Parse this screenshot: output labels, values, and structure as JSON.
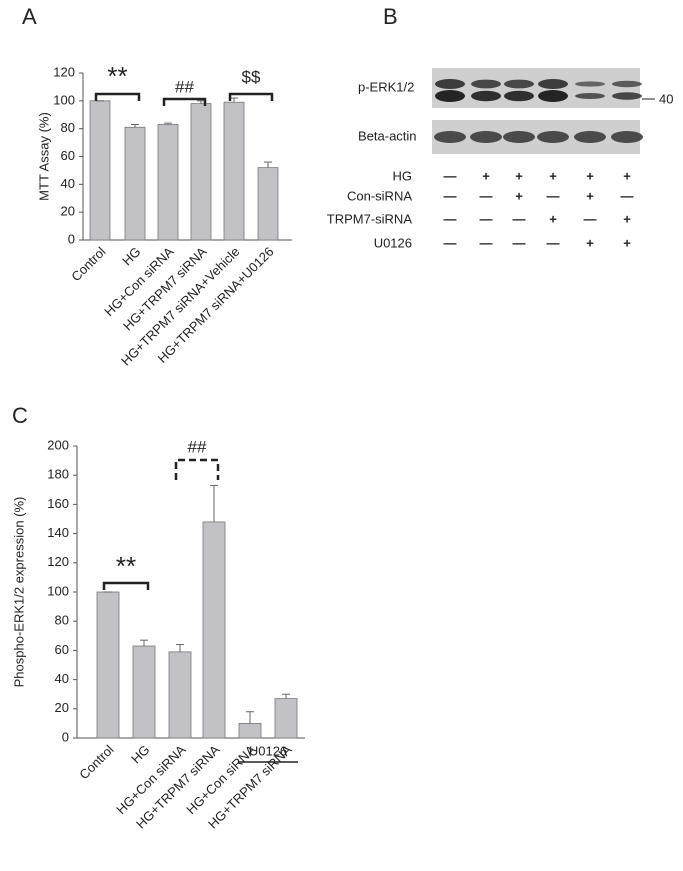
{
  "chart_data": [
    {
      "panel": "A",
      "type": "bar",
      "y_label": "MTT Assay (%)",
      "categories": [
        "Control",
        "HG",
        "HG+Con siRNA",
        "HG+TRPM7 siRNA",
        "HG+TRPM7 siRNA+Vehicle",
        "HG+TRPM7 siRNA+U0126"
      ],
      "values": [
        100,
        81,
        83,
        98,
        99,
        52
      ],
      "errors": [
        0,
        2,
        1,
        2,
        3,
        4
      ],
      "color": "#c2c2c6",
      "ylim": [
        0,
        120
      ],
      "yticks": [
        0,
        20,
        40,
        60,
        80,
        100,
        120
      ],
      "annotations": [
        "**",
        "##",
        "$$"
      ]
    },
    {
      "panel": "C",
      "type": "bar",
      "y_label": "Phospho-ERK1/2 expression (%)",
      "categories": [
        "Control",
        "HG",
        "HG+Con siRNA",
        "HG+TRPM7 siRNA",
        "HG+Con siRNA",
        "HG+TRPM7 siRNA"
      ],
      "values": [
        100,
        63,
        59,
        148,
        10,
        27
      ],
      "errors": [
        0,
        4,
        5,
        25,
        8,
        3
      ],
      "color": "#c2c2c6",
      "ylim": [
        0,
        200
      ],
      "yticks": [
        0,
        20,
        40,
        60,
        80,
        100,
        120,
        140,
        160,
        180,
        200
      ],
      "annotations": [
        "**",
        "##"
      ],
      "group_label": "U0126"
    }
  ],
  "blot": {
    "panel": "B",
    "bands": [
      "p-ERK1/2",
      "Beta-actin"
    ],
    "marker": "40",
    "conditions": [
      {
        "name": "HG",
        "signs": [
          "—",
          "+",
          "+",
          "+",
          "+",
          "+"
        ]
      },
      {
        "name": "Con-siRNA",
        "signs": [
          "—",
          "—",
          "+",
          "—",
          "+",
          "—"
        ]
      },
      {
        "name": "TRPM7-siRNA",
        "signs": [
          "—",
          "—",
          "—",
          "+",
          "—",
          "+"
        ]
      },
      {
        "name": "U0126",
        "signs": [
          "—",
          "—",
          "—",
          "—",
          "+",
          "+"
        ]
      }
    ]
  }
}
